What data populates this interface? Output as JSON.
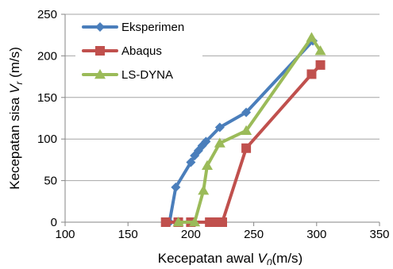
{
  "chart_data": {
    "type": "line",
    "title": "",
    "xlabel": "Kecepatan awal V0(m/s)",
    "xlabel_parts": [
      "Kecepatan awal ",
      "V",
      "0",
      "(m/s)"
    ],
    "ylabel": "Kecepatan sisa Vr (m/s)",
    "ylabel_parts": [
      "Kecepatan sisa ",
      "V",
      "r",
      " (m/s)"
    ],
    "xlim": [
      100,
      350
    ],
    "ylim": [
      0,
      250
    ],
    "x_ticks": [
      100,
      150,
      200,
      250,
      300,
      350
    ],
    "y_ticks": [
      0,
      50,
      100,
      150,
      200,
      250
    ],
    "grid": "horizontal",
    "legend_position": "top-left",
    "series": [
      {
        "name": "Eksperimen",
        "color": "#4a7ebb",
        "marker": "diamond",
        "x": [
          183,
          188,
          200,
          203,
          206,
          209,
          212,
          223,
          244,
          297
        ],
        "y": [
          0,
          42,
          72,
          80,
          86,
          92,
          97,
          114,
          132,
          218
        ]
      },
      {
        "name": "Abaqus",
        "color": "#c0504d",
        "marker": "square",
        "x": [
          180,
          190,
          200,
          215,
          220,
          225,
          244,
          296,
          303
        ],
        "y": [
          0,
          0,
          0,
          0,
          0,
          0,
          89,
          178,
          189
        ]
      },
      {
        "name": "LS-DYNA",
        "color": "#9bbb59",
        "marker": "triangle",
        "x": [
          190,
          203,
          210,
          213,
          223,
          244,
          296,
          303
        ],
        "y": [
          0,
          0,
          38,
          68,
          95,
          110,
          222,
          206
        ]
      }
    ]
  }
}
